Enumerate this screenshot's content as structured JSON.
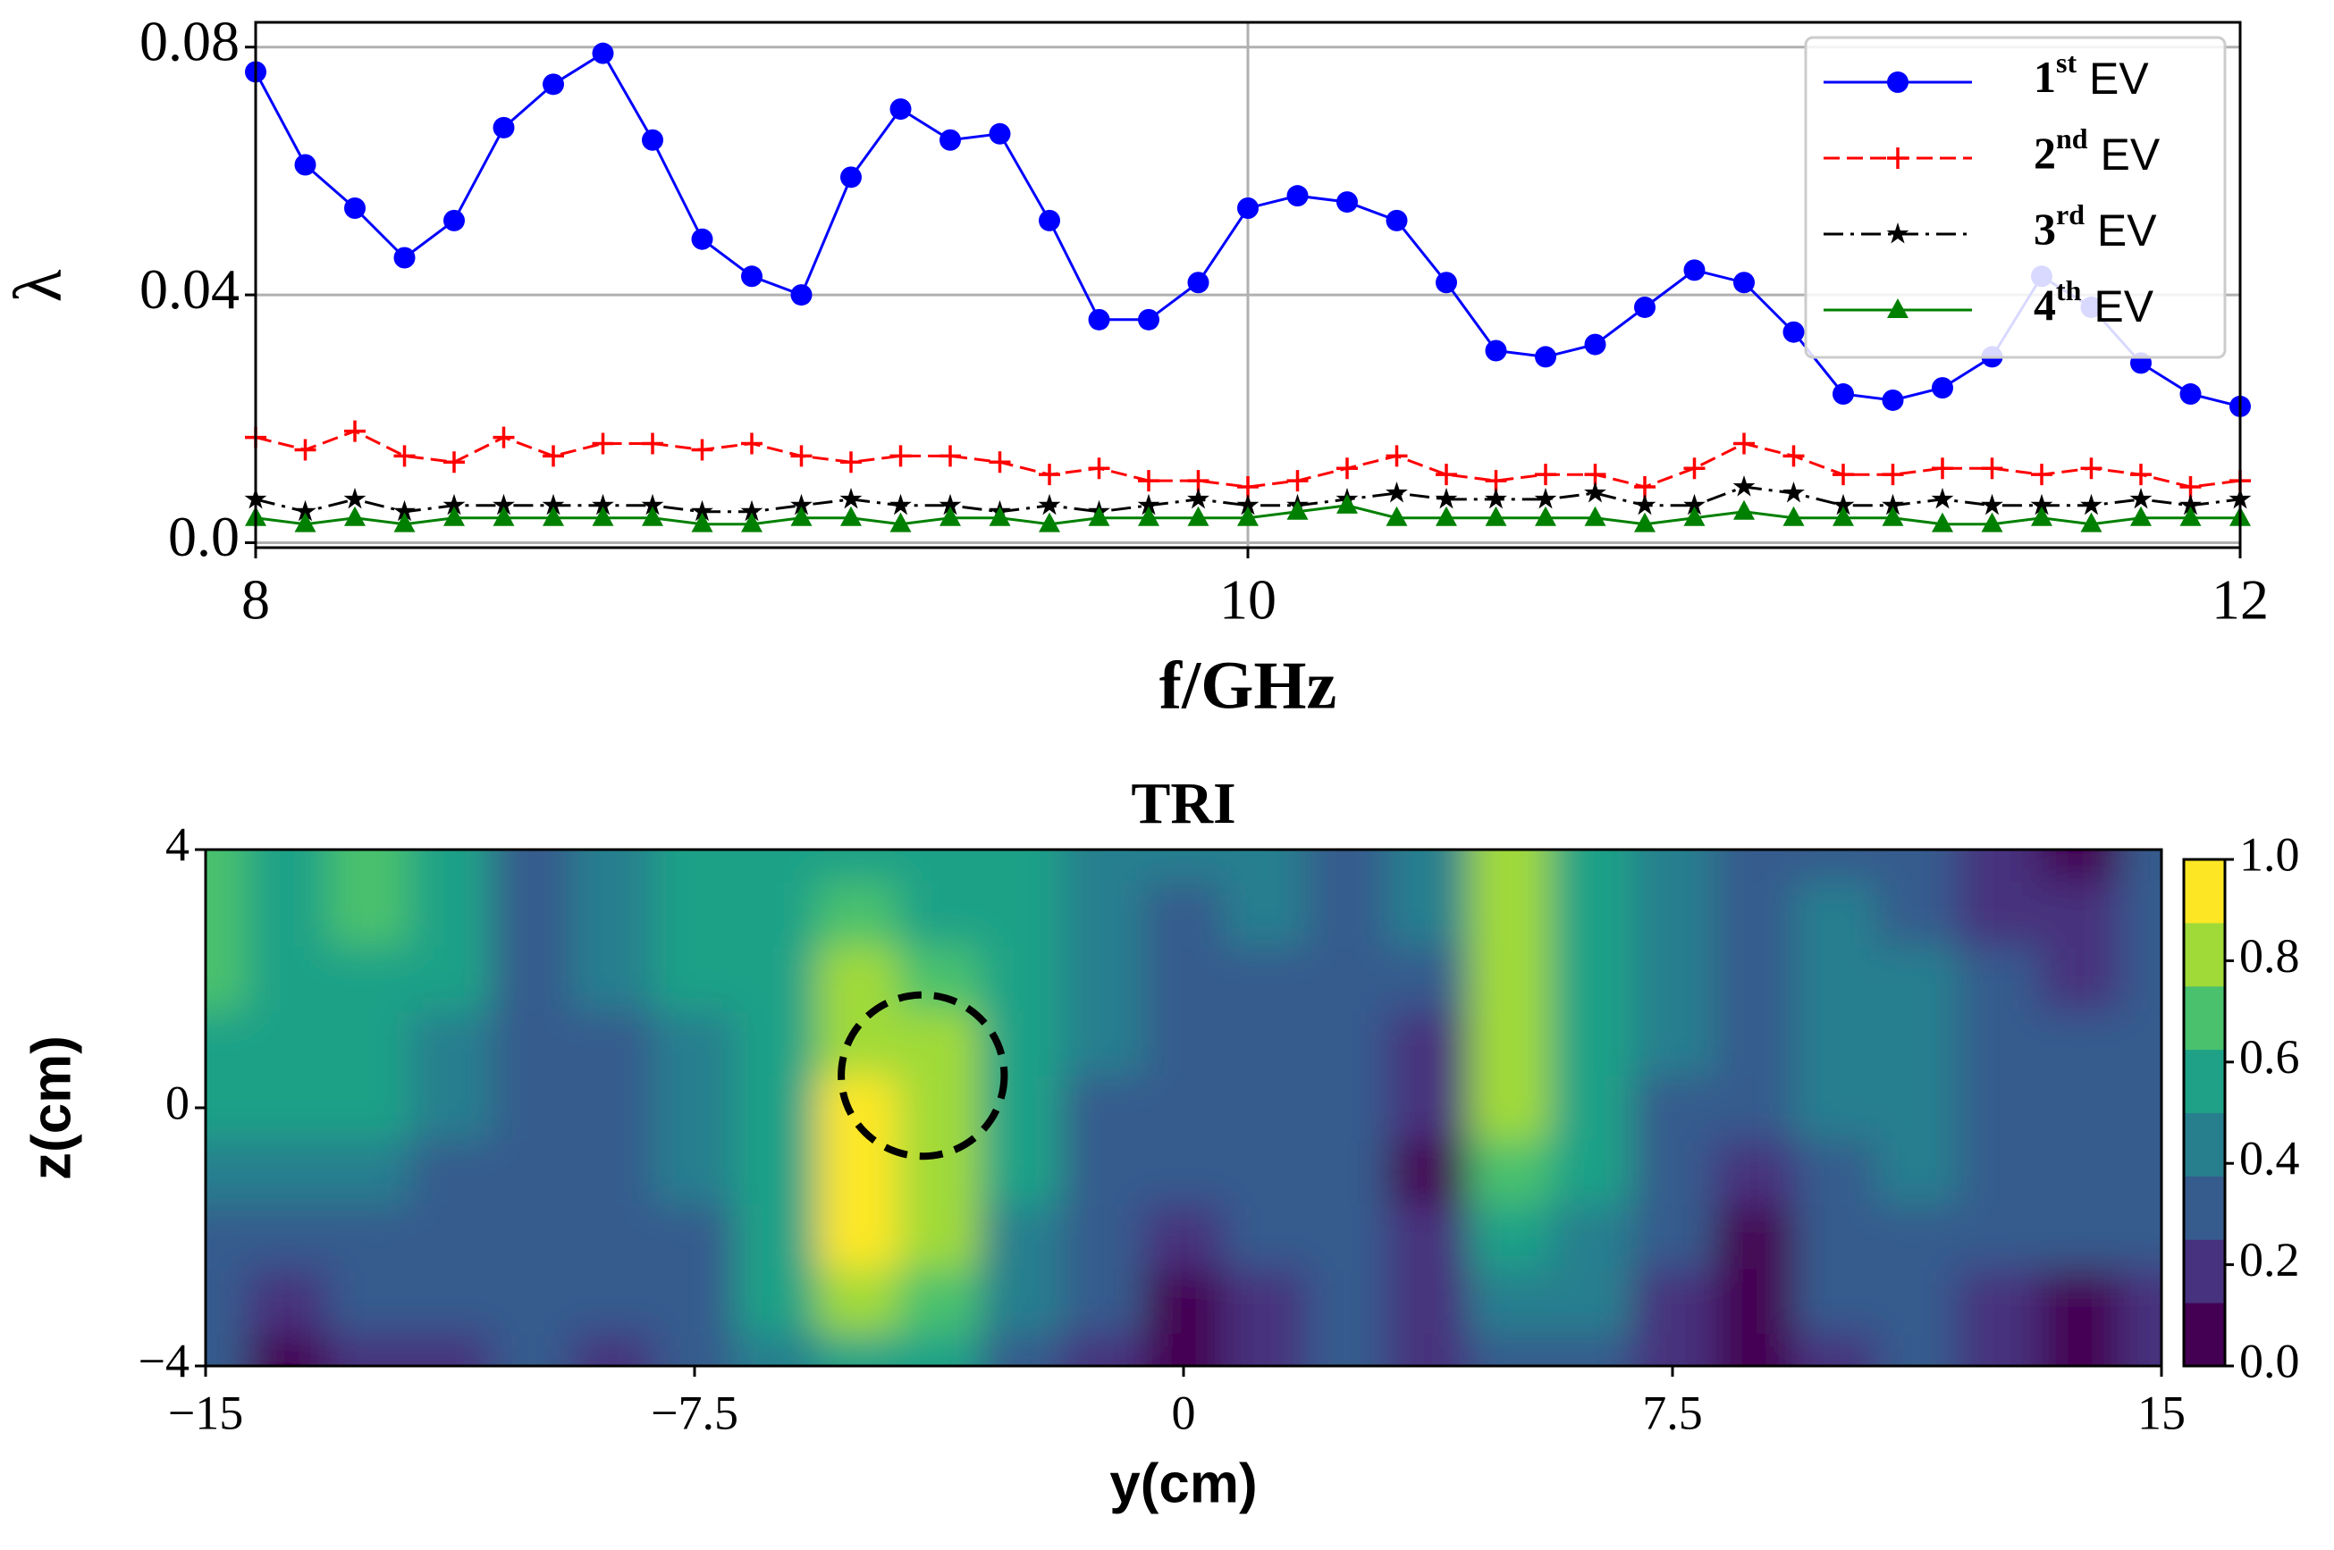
{
  "chart_data": [
    {
      "type": "line",
      "xlabel": "f/GHz",
      "ylabel": "λ",
      "xlim": [
        8,
        12
      ],
      "ylim": [
        -0.0008,
        0.084
      ],
      "xticks": [
        8,
        10,
        12
      ],
      "yticks": [
        {
          "value": 0,
          "label": "0.0"
        },
        0.04,
        0.08
      ],
      "grid": true,
      "legend": "upper right",
      "x": [
        8.0,
        8.1,
        8.2,
        8.3,
        8.4,
        8.5,
        8.6,
        8.7,
        8.8,
        8.9,
        9.0,
        9.1,
        9.2,
        9.3,
        9.4,
        9.5,
        9.6,
        9.7,
        9.8,
        9.9,
        10.0,
        10.1,
        10.2,
        10.3,
        10.4,
        10.5,
        10.6,
        10.7,
        10.8,
        10.9,
        11.0,
        11.1,
        11.2,
        11.3,
        11.4,
        11.5,
        11.6,
        11.7,
        11.8,
        11.9,
        12.0
      ],
      "series": [
        {
          "name": "1st EV",
          "color": "#0000ff",
          "marker": "circle",
          "linestyle": "solid",
          "values": [
            0.076,
            0.061,
            0.054,
            0.046,
            0.052,
            0.067,
            0.074,
            0.079,
            0.065,
            0.049,
            0.043,
            0.04,
            0.059,
            0.07,
            0.065,
            0.066,
            0.052,
            0.036,
            0.036,
            0.042,
            0.054,
            0.056,
            0.055,
            0.052,
            0.042,
            0.031,
            0.03,
            0.032,
            0.038,
            0.044,
            0.042,
            0.034,
            0.024,
            0.023,
            0.025,
            0.03,
            0.043,
            0.038,
            0.029,
            0.024,
            0.022
          ]
        },
        {
          "name": "2nd EV",
          "color": "#ff0000",
          "marker": "plus",
          "linestyle": "dashed",
          "values": [
            0.017,
            0.015,
            0.018,
            0.014,
            0.013,
            0.017,
            0.014,
            0.016,
            0.016,
            0.015,
            0.016,
            0.014,
            0.013,
            0.014,
            0.014,
            0.013,
            0.011,
            0.012,
            0.01,
            0.01,
            0.009,
            0.01,
            0.012,
            0.014,
            0.011,
            0.01,
            0.011,
            0.011,
            0.009,
            0.012,
            0.016,
            0.014,
            0.011,
            0.011,
            0.012,
            0.012,
            0.011,
            0.012,
            0.011,
            0.009,
            0.01
          ]
        },
        {
          "name": "3rd EV",
          "color": "#000000",
          "marker": "star",
          "linestyle": "dashdot",
          "values": [
            0.007,
            0.005,
            0.007,
            0.005,
            0.006,
            0.006,
            0.006,
            0.006,
            0.006,
            0.005,
            0.005,
            0.006,
            0.007,
            0.006,
            0.006,
            0.005,
            0.006,
            0.005,
            0.006,
            0.007,
            0.006,
            0.006,
            0.007,
            0.008,
            0.007,
            0.007,
            0.007,
            0.008,
            0.006,
            0.006,
            0.009,
            0.008,
            0.006,
            0.006,
            0.007,
            0.006,
            0.006,
            0.006,
            0.007,
            0.006,
            0.007
          ]
        },
        {
          "name": "4th EV",
          "color": "#008000",
          "marker": "triangle",
          "linestyle": "solid",
          "values": [
            0.004,
            0.003,
            0.004,
            0.003,
            0.004,
            0.004,
            0.004,
            0.004,
            0.004,
            0.003,
            0.003,
            0.004,
            0.004,
            0.003,
            0.004,
            0.004,
            0.003,
            0.004,
            0.004,
            0.004,
            0.004,
            0.005,
            0.006,
            0.004,
            0.004,
            0.004,
            0.004,
            0.004,
            0.003,
            0.004,
            0.005,
            0.004,
            0.004,
            0.004,
            0.003,
            0.003,
            0.004,
            0.003,
            0.004,
            0.004,
            0.004
          ]
        }
      ]
    },
    {
      "type": "contour",
      "title": "TRI",
      "xlabel": "y(cm)",
      "ylabel": "z(cm)",
      "xlim": [
        -15,
        15
      ],
      "ylim": [
        -4,
        4
      ],
      "xticks": [
        {
          "value": -15,
          "label": "−15"
        },
        {
          "value": -7.5,
          "label": "−7.5"
        },
        0,
        7.5,
        15
      ],
      "yticks": [
        {
          "value": -4,
          "label": "−4"
        },
        0,
        4
      ],
      "levels": [
        0,
        0.125,
        0.25,
        0.375,
        0.5,
        0.625,
        0.75,
        0.875,
        1
      ],
      "colors": [
        "#440154",
        "#46327e",
        "#365c8d",
        "#277f8e",
        "#1fa187",
        "#4ac16d",
        "#a0da39",
        "#fde725"
      ],
      "cticks": [
        {
          "value": 0,
          "label": "0.0"
        },
        0.2,
        0.4,
        0.6,
        0.8,
        {
          "value": 1,
          "label": "1.0"
        }
      ],
      "circle": {
        "center": [
          -4,
          0.5
        ],
        "radius": 1.25,
        "color": "#000000"
      },
      "y": [
        -15,
        -13.75,
        -12.5,
        -11.25,
        -10,
        -8.75,
        -7.5,
        -6.25,
        -5,
        -3.75,
        -2.5,
        -1.25,
        0,
        1.25,
        2.5,
        3.75,
        5,
        6.25,
        7.5,
        8.75,
        10,
        11.25,
        12.5,
        13.75,
        15
      ],
      "z": [
        4,
        3,
        2,
        1,
        0,
        -1,
        -2,
        -3,
        -4
      ],
      "values": [
        [
          0.65,
          0.6,
          0.7,
          0.55,
          0.25,
          0.4,
          0.55,
          0.6,
          0.6,
          0.6,
          0.55,
          0.45,
          0.4,
          0.45,
          0.35,
          0.45,
          0.85,
          0.6,
          0.45,
          0.35,
          0.35,
          0.3,
          0.15,
          0.1,
          0.3
        ],
        [
          0.7,
          0.6,
          0.7,
          0.55,
          0.25,
          0.4,
          0.55,
          0.6,
          0.65,
          0.6,
          0.55,
          0.45,
          0.35,
          0.4,
          0.35,
          0.4,
          0.85,
          0.6,
          0.45,
          0.35,
          0.4,
          0.35,
          0.2,
          0.15,
          0.3
        ],
        [
          0.7,
          0.6,
          0.6,
          0.5,
          0.3,
          0.4,
          0.5,
          0.6,
          0.75,
          0.7,
          0.55,
          0.4,
          0.35,
          0.35,
          0.3,
          0.35,
          0.85,
          0.6,
          0.45,
          0.35,
          0.45,
          0.45,
          0.3,
          0.2,
          0.3
        ],
        [
          0.6,
          0.55,
          0.55,
          0.45,
          0.3,
          0.35,
          0.45,
          0.6,
          0.85,
          0.8,
          0.55,
          0.4,
          0.3,
          0.3,
          0.25,
          0.2,
          0.8,
          0.55,
          0.4,
          0.3,
          0.45,
          0.45,
          0.35,
          0.3,
          0.3
        ],
        [
          0.55,
          0.5,
          0.5,
          0.4,
          0.3,
          0.35,
          0.45,
          0.6,
          0.95,
          0.85,
          0.5,
          0.35,
          0.25,
          0.25,
          0.25,
          0.15,
          0.75,
          0.5,
          0.35,
          0.3,
          0.4,
          0.45,
          0.35,
          0.3,
          0.3
        ],
        [
          0.45,
          0.4,
          0.4,
          0.35,
          0.3,
          0.3,
          0.4,
          0.6,
          1.0,
          0.85,
          0.5,
          0.35,
          0.25,
          0.25,
          0.25,
          0.05,
          0.65,
          0.5,
          0.3,
          0.2,
          0.35,
          0.4,
          0.35,
          0.3,
          0.3
        ],
        [
          0.35,
          0.3,
          0.35,
          0.3,
          0.3,
          0.3,
          0.35,
          0.55,
          0.9,
          0.75,
          0.45,
          0.3,
          0.2,
          0.25,
          0.25,
          0.15,
          0.55,
          0.45,
          0.25,
          0.1,
          0.3,
          0.35,
          0.3,
          0.3,
          0.25
        ],
        [
          0.3,
          0.2,
          0.25,
          0.25,
          0.3,
          0.25,
          0.3,
          0.5,
          0.75,
          0.65,
          0.4,
          0.25,
          0.05,
          0.2,
          0.25,
          0.2,
          0.45,
          0.4,
          0.2,
          0.05,
          0.25,
          0.3,
          0.2,
          0.1,
          0.2
        ],
        [
          0.3,
          0.1,
          0.2,
          0.2,
          0.25,
          0.2,
          0.25,
          0.45,
          0.6,
          0.55,
          0.35,
          0.2,
          0.05,
          0.15,
          0.25,
          0.2,
          0.35,
          0.35,
          0.15,
          0.05,
          0.2,
          0.25,
          0.15,
          0.05,
          0.15
        ]
      ]
    }
  ]
}
